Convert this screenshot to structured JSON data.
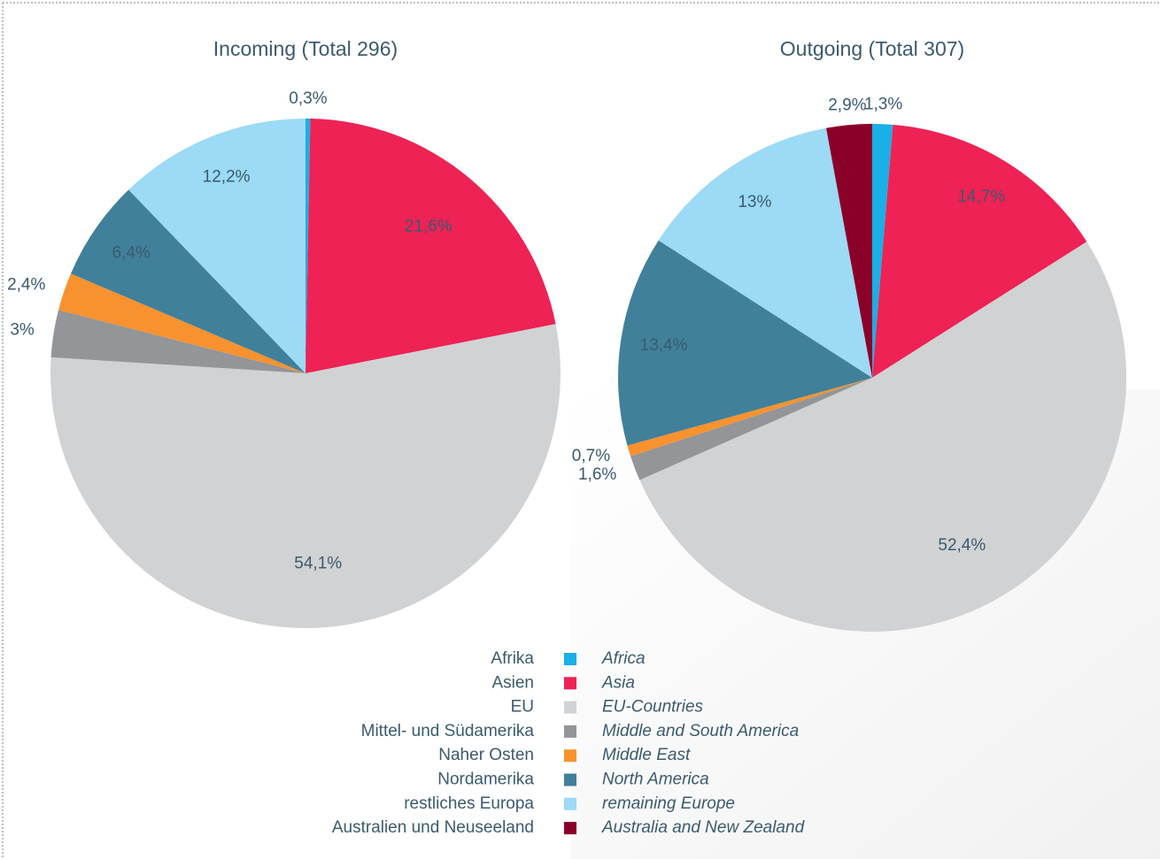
{
  "chart_data": [
    {
      "type": "pie",
      "title": "Incoming (Total 296)",
      "categories": [
        "Afrika",
        "Asien",
        "EU",
        "Mittel- und Südamerika",
        "Naher Osten",
        "Nordamerika",
        "restliches Europa"
      ],
      "values": [
        0.3,
        21.6,
        54.1,
        3,
        2.4,
        6.4,
        12.2
      ],
      "value_labels": [
        "0,3%",
        "21,6%",
        "54,1%",
        "3%",
        "2,4%",
        "6,4%",
        "12,2%"
      ],
      "colors": [
        "#1aafe6",
        "#ee2254",
        "#d1d2d4",
        "#939598",
        "#f7922e",
        "#40809a",
        "#9cdaf5"
      ]
    },
    {
      "type": "pie",
      "title": "Outgoing (Total 307)",
      "categories": [
        "Afrika",
        "Asien",
        "EU",
        "Mittel- und Südamerika",
        "Naher Osten",
        "Nordamerika",
        "restliches Europa",
        "Australien und Neuseeland"
      ],
      "values": [
        1.3,
        14.7,
        52.4,
        1.6,
        0.7,
        13.4,
        13,
        2.9
      ],
      "value_labels": [
        "1,3%",
        "14,7%",
        "52,4%",
        "1,6%",
        "0,7%",
        "13,4%",
        "13%",
        "2,9%"
      ],
      "colors": [
        "#1aafe6",
        "#ee2254",
        "#d1d2d4",
        "#939598",
        "#f7922e",
        "#40809a",
        "#9cdaf5",
        "#8b0029"
      ]
    }
  ],
  "legend": {
    "labels": [
      "Afrika",
      "Asien",
      "EU",
      "Mittel- und Südamerika",
      "Naher Osten",
      "Nordamerika",
      "restliches Europa",
      "Australien und Neuseeland"
    ],
    "labels_en": [
      "Africa",
      "Asia",
      "EU-Countries",
      "Middle and South America",
      "Middle East",
      "North America",
      "remaining Europe",
      "Australia and New Zealand"
    ],
    "colors": [
      "#1aafe6",
      "#ee2254",
      "#d1d2d4",
      "#939598",
      "#f7922e",
      "#40809a",
      "#9cdaf5",
      "#8b0029"
    ]
  }
}
